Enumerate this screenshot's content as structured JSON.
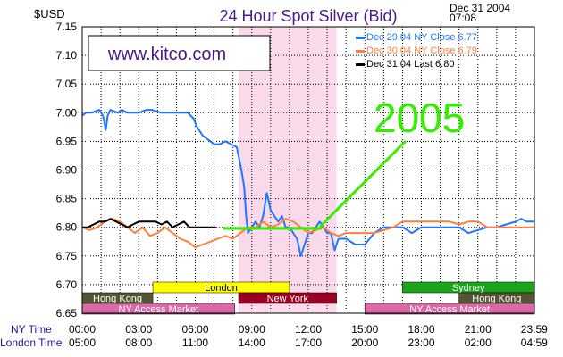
{
  "chart_data": {
    "type": "line",
    "title": "24 Hour Spot Silver (Bid)",
    "unit_label": "$USD",
    "date_line_1": "Dec 31 2004",
    "date_line_2": "07:08",
    "watermark": "www.kitco.com",
    "annotation": "2005",
    "ylim": [
      6.65,
      7.15
    ],
    "y_ticks": [
      "7.15",
      "7.10",
      "7.05",
      "7.00",
      "6.95",
      "6.90",
      "6.85",
      "6.80",
      "6.75",
      "6.70",
      "6.65"
    ],
    "x_range_hours": [
      0,
      24
    ],
    "ny_time_label": "NY Time",
    "london_time_label": "London Time",
    "ny_ticks": [
      "00:00",
      "03:00",
      "06:00",
      "09:00",
      "12:00",
      "15:00",
      "18:00",
      "21:00",
      "23:59"
    ],
    "london_ticks": [
      "05:00",
      "08:00",
      "11:00",
      "14:00",
      "17:00",
      "20:00",
      "23:00",
      "02:00",
      "04:59"
    ],
    "grid": true,
    "legend_placement": "top-right",
    "series": [
      {
        "name": "Dec 29,04 NY Close 6.77",
        "color": "#1f77ff",
        "x": [
          0,
          0.2,
          0.5,
          0.9,
          1.1,
          1.25,
          1.35,
          1.5,
          1.9,
          2.1,
          2.4,
          3.0,
          3.4,
          3.7,
          4.2,
          4.8,
          5.3,
          5.6,
          5.9,
          6.1,
          6.4,
          6.8,
          7.0,
          7.3,
          7.6,
          7.9,
          8.2,
          8.45,
          8.6,
          8.7,
          8.8,
          9.0,
          9.2,
          9.4,
          9.6,
          9.8,
          10.0,
          10.2,
          10.4,
          10.6,
          10.8,
          11.0,
          11.2,
          11.4,
          11.6,
          11.8,
          12.0,
          12.2,
          12.4,
          12.6,
          12.8,
          13.0,
          13.2,
          13.4,
          13.6,
          14.0,
          14.5,
          15.0,
          15.5,
          16.0,
          16.5,
          17.0,
          17.5,
          18.0,
          18.5,
          19.0,
          19.5,
          20.0,
          20.5,
          21.0,
          21.5,
          22.0,
          22.5,
          23.0,
          23.3,
          23.6,
          23.99
        ],
        "y": [
          6.995,
          7.0,
          7.0,
          7.005,
          6.995,
          6.97,
          6.995,
          7.005,
          7.0,
          7.005,
          7.0,
          7.0,
          7.005,
          7.005,
          7.0,
          7.0,
          7.0,
          7.0,
          6.99,
          6.975,
          6.96,
          6.95,
          6.945,
          6.945,
          6.95,
          6.945,
          6.94,
          6.9,
          6.87,
          6.82,
          6.79,
          6.8,
          6.81,
          6.8,
          6.82,
          6.86,
          6.83,
          6.82,
          6.81,
          6.82,
          6.8,
          6.8,
          6.79,
          6.78,
          6.75,
          6.77,
          6.79,
          6.79,
          6.8,
          6.81,
          6.8,
          6.79,
          6.79,
          6.76,
          6.78,
          6.78,
          6.77,
          6.77,
          6.79,
          6.8,
          6.8,
          6.8,
          6.79,
          6.8,
          6.8,
          6.8,
          6.8,
          6.8,
          6.79,
          6.795,
          6.8,
          6.8,
          6.805,
          6.81,
          6.815,
          6.81,
          6.81
        ]
      },
      {
        "name": "Dec 30,04 NY Close 6.79",
        "color": "#ff7f3f",
        "x": [
          0,
          0.4,
          0.8,
          1.2,
          1.6,
          2.0,
          2.4,
          2.8,
          3.2,
          3.6,
          4.0,
          4.4,
          4.8,
          5.2,
          5.6,
          6.0,
          6.4,
          6.8,
          7.2,
          7.6,
          8.0,
          8.4,
          8.8,
          9.2,
          9.6,
          10.0,
          10.4,
          10.8,
          11.2,
          11.6,
          12.0,
          12.4,
          12.8,
          13.2,
          13.6,
          14.0,
          14.5,
          15.0,
          15.5,
          16.0,
          16.5,
          17.0,
          17.5,
          18.0,
          18.5,
          19.0,
          19.5,
          20.0,
          20.5,
          21.0,
          21.5,
          22.0,
          22.5,
          23.0,
          23.5,
          23.99
        ],
        "y": [
          6.8,
          6.795,
          6.8,
          6.81,
          6.815,
          6.81,
          6.8,
          6.79,
          6.8,
          6.785,
          6.79,
          6.8,
          6.79,
          6.78,
          6.775,
          6.765,
          6.77,
          6.775,
          6.78,
          6.785,
          6.78,
          6.79,
          6.8,
          6.8,
          6.81,
          6.8,
          6.805,
          6.815,
          6.81,
          6.8,
          6.79,
          6.795,
          6.8,
          6.79,
          6.785,
          6.79,
          6.79,
          6.79,
          6.79,
          6.795,
          6.8,
          6.81,
          6.81,
          6.81,
          6.81,
          6.81,
          6.81,
          6.805,
          6.81,
          6.81,
          6.8,
          6.8,
          6.8,
          6.8,
          6.8,
          6.8
        ]
      },
      {
        "name": "Dec 31,04 Last 6.80",
        "color": "#000000",
        "x": [
          0,
          0.3,
          0.6,
          0.9,
          1.2,
          1.5,
          1.8,
          2.1,
          2.4,
          2.7,
          3.0,
          3.3,
          3.6,
          3.9,
          4.2,
          4.5,
          4.8,
          5.1,
          5.4,
          5.7,
          6.0,
          6.3,
          6.6,
          6.9,
          7.1
        ],
        "y": [
          6.8,
          6.8,
          6.805,
          6.81,
          6.81,
          6.815,
          6.81,
          6.805,
          6.8,
          6.805,
          6.81,
          6.81,
          6.81,
          6.81,
          6.805,
          6.81,
          6.8,
          6.805,
          6.81,
          6.8,
          6.8,
          6.8,
          6.8,
          6.8,
          6.8
        ]
      }
    ],
    "sessions": [
      {
        "name": "London",
        "color": "#ffff00",
        "text_color": "#000000",
        "start": 3.75,
        "end": 11.0,
        "row": 0
      },
      {
        "name": "Sydney",
        "color": "#1aa51a",
        "text_color": "#ffffff",
        "start": 17.0,
        "end": 24.0,
        "row": 0
      },
      {
        "name": "Hong Kong",
        "color": "#555533",
        "text_color": "#ffffff",
        "start": 0.0,
        "end": 3.75,
        "row": 1
      },
      {
        "name": "New York",
        "color": "#990022",
        "text_color": "#ffffff",
        "start": 8.3,
        "end": 13.5,
        "row": 1
      },
      {
        "name": "Hong Kong",
        "color": "#555533",
        "text_color": "#ffffff",
        "start": 20.0,
        "end": 24.0,
        "row": 1
      },
      {
        "name": "NY Access Market",
        "color": "#d96aa8",
        "text_color": "#ffffff",
        "start": 0.0,
        "end": 8.1,
        "row": 2
      },
      {
        "name": "NY Access Market",
        "color": "#d96aa8",
        "text_color": "#ffffff",
        "start": 15.0,
        "end": 24.0,
        "row": 2
      }
    ],
    "highlight": {
      "color": "#fadaea",
      "start": 8.3,
      "end": 13.5
    },
    "colors": {
      "annotation": "#33ee00",
      "title": "#4a1a8a",
      "watermark": "#4a1a8a",
      "grid": "#000000"
    }
  }
}
